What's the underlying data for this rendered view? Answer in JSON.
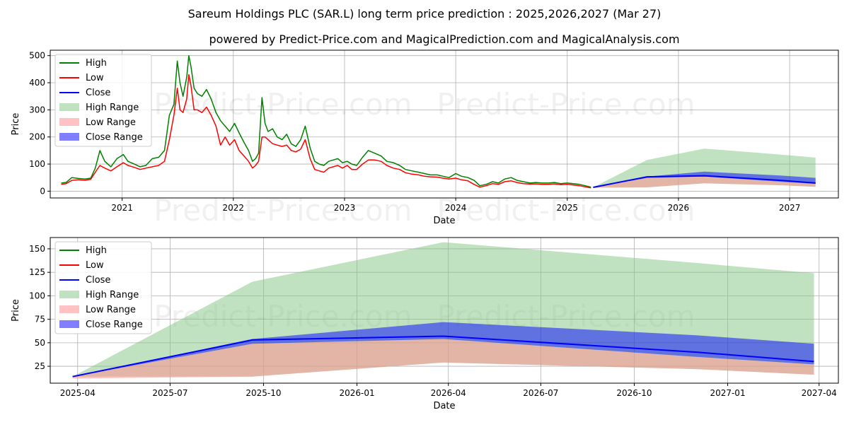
{
  "title": "Sareum Holdings PLC (SAR.L) long term price prediction : 2025,2026,2027 (Mar 27)",
  "subtitle": "powered by Predict-Price.com and MagicalPrediction.com and MagicalAnalysis.com",
  "watermark": "Predict-Price.com",
  "colors": {
    "high": "#008000",
    "low": "#ff0000",
    "close": "#0000ff",
    "high_range": "#82c582",
    "low_range": "#ff8f8f",
    "close_range": "#7f7fff",
    "grid": "#b0b0b0"
  },
  "legend": [
    {
      "label": "High",
      "kind": "line",
      "color": "#008000"
    },
    {
      "label": "Low",
      "kind": "line",
      "color": "#ff0000"
    },
    {
      "label": "Close",
      "kind": "line",
      "color": "#0000ff"
    },
    {
      "label": "High Range",
      "kind": "patch",
      "color": "#82c582",
      "opacity": 0.5
    },
    {
      "label": "Low Range",
      "kind": "patch",
      "color": "#ff8f8f",
      "opacity": 0.55
    },
    {
      "label": "Close Range",
      "kind": "patch",
      "color": "#0000ff",
      "opacity": 0.5
    }
  ],
  "chart_data": [
    {
      "type": "line",
      "xlabel": "Date",
      "ylabel": "Price",
      "xlim": [
        "2020-05-10",
        "2027-06-10"
      ],
      "ylim": [
        -25,
        520
      ],
      "yticks": [
        0,
        100,
        200,
        300,
        400,
        500
      ],
      "xticks": [
        {
          "label": "2021",
          "date": "2021-01-01"
        },
        {
          "label": "2022",
          "date": "2022-01-01"
        },
        {
          "label": "2023",
          "date": "2023-01-01"
        },
        {
          "label": "2024",
          "date": "2024-01-01"
        },
        {
          "label": "2025",
          "date": "2025-01-01"
        },
        {
          "label": "2026",
          "date": "2026-01-01"
        },
        {
          "label": "2027",
          "date": "2027-01-01"
        }
      ],
      "grid": true,
      "legend_position": "upper-left",
      "history_x": [
        "2020-06-15",
        "2020-07-01",
        "2020-07-20",
        "2020-08-10",
        "2020-09-01",
        "2020-09-20",
        "2020-10-05",
        "2020-10-20",
        "2020-11-05",
        "2020-11-25",
        "2020-12-15",
        "2021-01-05",
        "2021-01-20",
        "2021-02-10",
        "2021-03-01",
        "2021-03-20",
        "2021-04-10",
        "2021-05-01",
        "2021-05-20",
        "2021-06-05",
        "2021-06-20",
        "2021-07-01",
        "2021-07-10",
        "2021-07-20",
        "2021-08-01",
        "2021-08-08",
        "2021-08-15",
        "2021-08-25",
        "2021-09-05",
        "2021-09-20",
        "2021-10-05",
        "2021-10-20",
        "2021-11-05",
        "2021-11-20",
        "2021-12-05",
        "2021-12-20",
        "2022-01-05",
        "2022-01-20",
        "2022-02-05",
        "2022-02-20",
        "2022-03-05",
        "2022-03-15",
        "2022-03-25",
        "2022-04-05",
        "2022-04-15",
        "2022-04-25",
        "2022-05-10",
        "2022-05-25",
        "2022-06-10",
        "2022-06-25",
        "2022-07-10",
        "2022-07-25",
        "2022-08-10",
        "2022-08-25",
        "2022-09-10",
        "2022-09-25",
        "2022-10-10",
        "2022-10-25",
        "2022-11-10",
        "2022-11-25",
        "2022-12-10",
        "2022-12-25",
        "2023-01-10",
        "2023-01-25",
        "2023-02-10",
        "2023-03-01",
        "2023-03-20",
        "2023-04-10",
        "2023-05-01",
        "2023-05-20",
        "2023-06-10",
        "2023-07-01",
        "2023-07-20",
        "2023-08-10",
        "2023-09-01",
        "2023-09-20",
        "2023-10-10",
        "2023-11-01",
        "2023-11-20",
        "2023-12-10",
        "2024-01-01",
        "2024-01-20",
        "2024-02-10",
        "2024-03-01",
        "2024-03-20",
        "2024-04-10",
        "2024-05-01",
        "2024-05-20",
        "2024-06-10",
        "2024-07-01",
        "2024-07-20",
        "2024-08-10",
        "2024-09-01",
        "2024-09-20",
        "2024-10-10",
        "2024-11-01",
        "2024-11-20",
        "2024-12-10",
        "2025-01-01",
        "2025-01-20",
        "2025-02-10",
        "2025-03-01",
        "2025-03-20"
      ],
      "history_high": [
        30,
        32,
        50,
        47,
        45,
        48,
        85,
        150,
        110,
        90,
        120,
        135,
        110,
        100,
        90,
        95,
        120,
        125,
        150,
        280,
        320,
        480,
        400,
        350,
        420,
        500,
        460,
        380,
        360,
        350,
        375,
        340,
        290,
        260,
        240,
        220,
        250,
        215,
        180,
        150,
        110,
        120,
        140,
        345,
        250,
        220,
        230,
        200,
        190,
        210,
        175,
        165,
        190,
        240,
        160,
        110,
        100,
        95,
        110,
        115,
        120,
        105,
        110,
        100,
        95,
        125,
        150,
        140,
        130,
        110,
        105,
        95,
        80,
        75,
        70,
        65,
        60,
        60,
        55,
        50,
        65,
        55,
        50,
        40,
        20,
        25,
        35,
        30,
        45,
        50,
        40,
        35,
        30,
        32,
        30,
        30,
        32,
        28,
        30,
        28,
        25,
        20,
        15
      ],
      "history_low": [
        25,
        28,
        40,
        42,
        40,
        44,
        70,
        95,
        85,
        75,
        90,
        105,
        95,
        88,
        80,
        85,
        90,
        95,
        110,
        190,
        280,
        380,
        300,
        290,
        340,
        430,
        390,
        300,
        300,
        290,
        310,
        280,
        240,
        170,
        200,
        170,
        190,
        150,
        130,
        110,
        85,
        95,
        110,
        200,
        200,
        190,
        175,
        170,
        165,
        170,
        150,
        145,
        155,
        190,
        120,
        80,
        75,
        70,
        85,
        90,
        95,
        85,
        95,
        80,
        80,
        100,
        115,
        115,
        110,
        95,
        85,
        80,
        68,
        63,
        60,
        55,
        53,
        52,
        48,
        45,
        48,
        42,
        38,
        25,
        15,
        20,
        28,
        25,
        35,
        38,
        32,
        28,
        26,
        27,
        25,
        25,
        27,
        24,
        25,
        23,
        20,
        16,
        12
      ],
      "forecast_x": [
        "2025-03-27",
        "2025-09-20",
        "2026-03-27",
        "2026-12-01",
        "2027-03-27"
      ],
      "close": [
        14,
        53,
        57,
        40,
        30
      ],
      "high_range": [
        [
          14,
          14
        ],
        [
          14,
          115
        ],
        [
          29,
          157
        ],
        [
          22,
          135
        ],
        [
          16,
          124
        ]
      ],
      "low_range": [
        [
          12,
          14
        ],
        [
          14,
          49
        ],
        [
          29,
          54
        ],
        [
          22,
          35
        ],
        [
          16,
          27
        ]
      ],
      "close_range": [
        [
          14,
          14
        ],
        [
          49,
          54
        ],
        [
          54,
          72
        ],
        [
          35,
          58
        ],
        [
          27,
          49
        ]
      ]
    },
    {
      "type": "line",
      "xlabel": "Date",
      "ylabel": "Price",
      "xlim": [
        "2025-03-05",
        "2027-04-20"
      ],
      "ylim": [
        7,
        162
      ],
      "yticks": [
        25,
        50,
        75,
        100,
        125,
        150
      ],
      "xticks": [
        {
          "label": "2025-04",
          "date": "2025-04-01"
        },
        {
          "label": "2025-07",
          "date": "2025-07-01"
        },
        {
          "label": "2025-10",
          "date": "2025-10-01"
        },
        {
          "label": "2026-01",
          "date": "2026-01-01"
        },
        {
          "label": "2026-04",
          "date": "2026-04-01"
        },
        {
          "label": "2026-07",
          "date": "2026-07-01"
        },
        {
          "label": "2026-10",
          "date": "2026-10-01"
        },
        {
          "label": "2027-01",
          "date": "2027-01-01"
        },
        {
          "label": "2027-04",
          "date": "2027-04-01"
        }
      ],
      "grid": true,
      "legend_position": "upper-left",
      "forecast_x": [
        "2025-03-27",
        "2025-09-20",
        "2026-03-27",
        "2026-12-01",
        "2027-03-27"
      ],
      "close": [
        14,
        53,
        57,
        40,
        30
      ],
      "high_range": [
        [
          14,
          14
        ],
        [
          14,
          115
        ],
        [
          29,
          157
        ],
        [
          22,
          135
        ],
        [
          16,
          124
        ]
      ],
      "low_range": [
        [
          12,
          14
        ],
        [
          14,
          49
        ],
        [
          29,
          54
        ],
        [
          22,
          35
        ],
        [
          16,
          27
        ]
      ],
      "close_range": [
        [
          14,
          14
        ],
        [
          49,
          54
        ],
        [
          54,
          72
        ],
        [
          35,
          58
        ],
        [
          27,
          49
        ]
      ]
    }
  ]
}
